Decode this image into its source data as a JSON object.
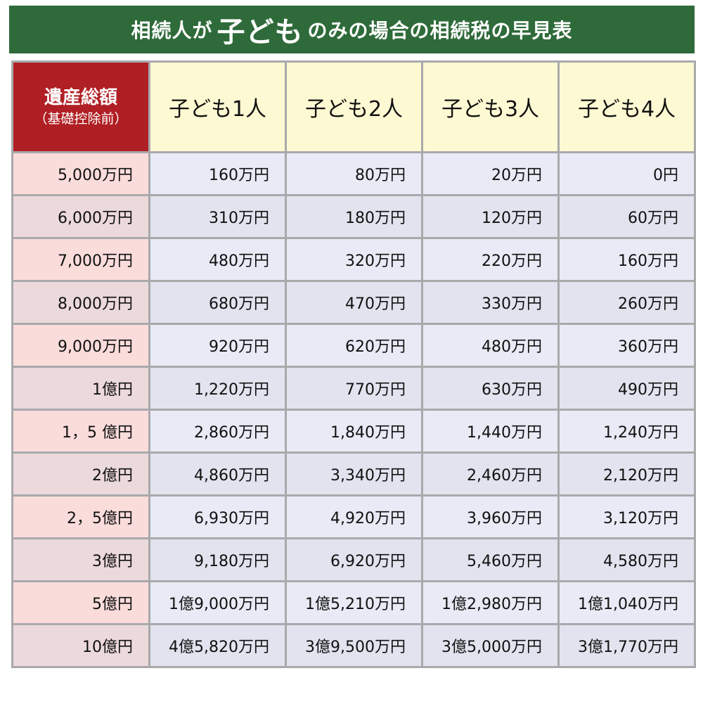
{
  "title": {
    "prefix": "相続人が",
    "emphasis": "子ども",
    "suffix": "のみの場合の相続税の早見表"
  },
  "table": {
    "corner_label": "遺産総額",
    "corner_sub": "（基礎控除前）",
    "columns": [
      "子ども1人",
      "子ども2人",
      "子ども3人",
      "子ども4人"
    ],
    "rows": [
      {
        "estate": "5,000万円",
        "values": [
          "160万円",
          "80万円",
          "20万円",
          "0円"
        ]
      },
      {
        "estate": "6,000万円",
        "values": [
          "310万円",
          "180万円",
          "120万円",
          "60万円"
        ]
      },
      {
        "estate": "7,000万円",
        "values": [
          "480万円",
          "320万円",
          "220万円",
          "160万円"
        ]
      },
      {
        "estate": "8,000万円",
        "values": [
          "680万円",
          "470万円",
          "330万円",
          "260万円"
        ]
      },
      {
        "estate": "9,000万円",
        "values": [
          "920万円",
          "620万円",
          "480万円",
          "360万円"
        ]
      },
      {
        "estate": "1億円",
        "values": [
          "1,220万円",
          "770万円",
          "630万円",
          "490万円"
        ]
      },
      {
        "estate": "1，5 億円",
        "values": [
          "2,860万円",
          "1,840万円",
          "1,440万円",
          "1,240万円"
        ]
      },
      {
        "estate": "2億円",
        "values": [
          "4,860万円",
          "3,340万円",
          "2,460万円",
          "2,120万円"
        ]
      },
      {
        "estate": "2，5億円",
        "values": [
          "6,930万円",
          "4,920万円",
          "3,960万円",
          "3,120万円"
        ]
      },
      {
        "estate": "3億円",
        "values": [
          "9,180万円",
          "6,920万円",
          "5,460万円",
          "4,580万円"
        ]
      },
      {
        "estate": "5億円",
        "values": [
          "1億9,000万円",
          "1億5,210万円",
          "1億2,980万円",
          "1億1,040万円"
        ]
      },
      {
        "estate": "10億円",
        "values": [
          "4億5,820万円",
          "3億9,500万円",
          "3億5,000万円",
          "3億1,770万円"
        ]
      }
    ]
  },
  "colors": {
    "title_bg": "#2f6b3a",
    "corner_bg": "#b01f24",
    "header_bg": "#fdf9d2",
    "rowhead_bg": "#fadcdb",
    "cell_bg": "#e8ebf5",
    "border": "#a9a9ac"
  }
}
